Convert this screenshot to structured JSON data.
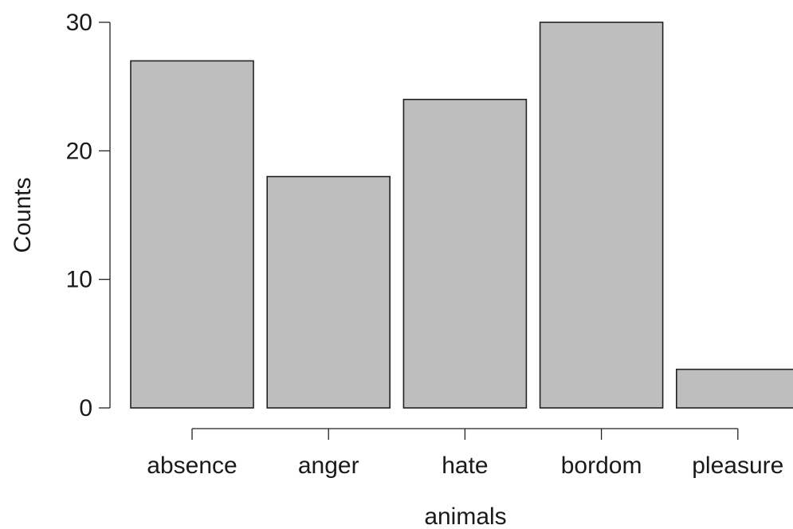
{
  "chart_data": {
    "type": "bar",
    "categories": [
      "absence",
      "anger",
      "hate",
      "bordom",
      "pleasure"
    ],
    "values": [
      27,
      18,
      24,
      30,
      3
    ],
    "title": "",
    "xlabel": "animals",
    "ylabel": "Counts",
    "ylim": [
      0,
      30
    ],
    "yticks": [
      "0",
      "10",
      "20",
      "30"
    ],
    "grid": false,
    "bar_color": "#bebebe",
    "bar_border_color": "#222222"
  }
}
